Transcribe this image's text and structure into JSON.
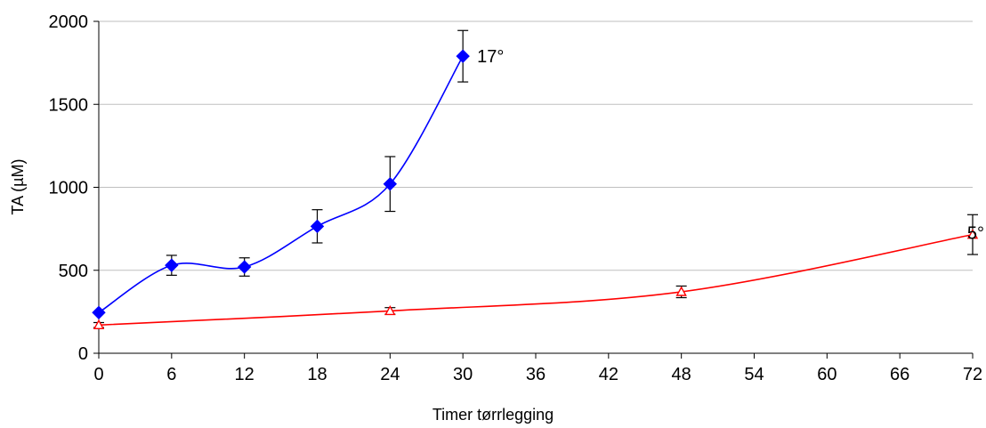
{
  "chart_data": {
    "type": "line",
    "title": "",
    "xlabel": "Timer tørrlegging",
    "ylabel": "TA (µM)",
    "xlim": [
      0,
      72
    ],
    "ylim": [
      0,
      2000
    ],
    "xticks": [
      0,
      6,
      12,
      18,
      24,
      30,
      36,
      42,
      48,
      54,
      60,
      66,
      72
    ],
    "yticks": [
      0,
      500,
      1000,
      1500,
      2000
    ],
    "grid": "horizontal",
    "legend": "none",
    "series": [
      {
        "name": "17°",
        "color": "#0000ff",
        "marker": "diamond",
        "x": [
          0,
          6,
          12,
          18,
          24,
          30
        ],
        "y": [
          245,
          530,
          520,
          765,
          1020,
          1790
        ],
        "err": [
          0,
          60,
          55,
          100,
          165,
          155
        ]
      },
      {
        "name": "5°",
        "color": "#ff0000",
        "marker": "triangle",
        "x": [
          0,
          24,
          48,
          72
        ],
        "y": [
          170,
          255,
          370,
          715
        ],
        "err": [
          15,
          20,
          35,
          120
        ]
      }
    ]
  }
}
